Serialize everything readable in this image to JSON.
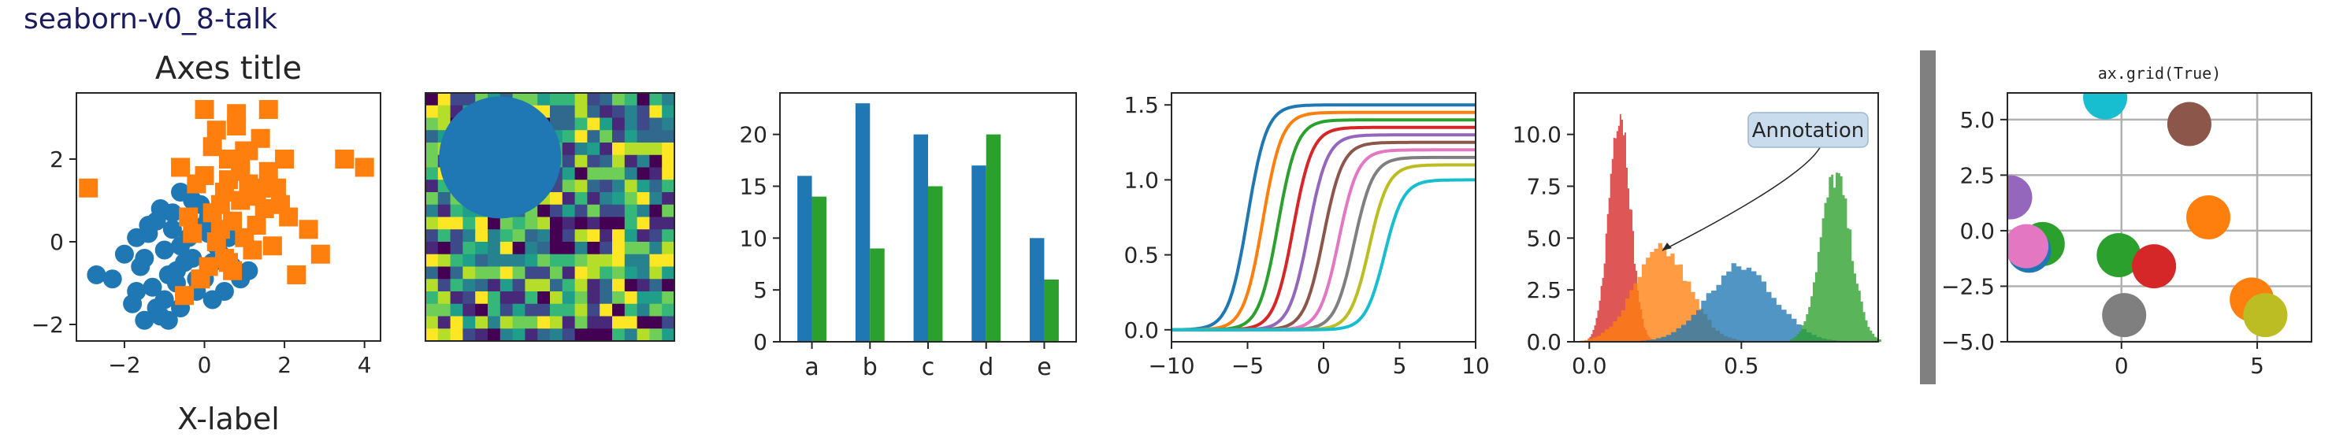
{
  "figure": {
    "suptitle": "seaborn-v0_8-talk",
    "suptitle_color": "#1a1a5e"
  },
  "palette": [
    "#1f77b4",
    "#ff7f0e",
    "#2ca02c",
    "#d62728",
    "#9467bd",
    "#8c564b",
    "#e377c2",
    "#7f7f7f",
    "#bcbd22",
    "#17becf"
  ],
  "chart_data": [
    {
      "type": "scatter",
      "title": "Axes title",
      "xlabel": "X-label",
      "ylabel": "",
      "xlim": [
        -3.2,
        4.4
      ],
      "ylim": [
        -2.4,
        3.6
      ],
      "xticks": [
        -2,
        0,
        2,
        4
      ],
      "yticks": [
        -2,
        0,
        2
      ],
      "series": [
        {
          "marker": "circle",
          "color": "#1f77b4",
          "x": [
            -2.7,
            -2.3,
            -2.0,
            -1.8,
            -1.7,
            -1.6,
            -1.5,
            -1.4,
            -1.3,
            -1.2,
            -1.1,
            -1.0,
            -0.9,
            -0.8,
            -0.7,
            -0.6,
            -0.5,
            -0.4,
            -0.3,
            -0.2,
            -0.1,
            0.0,
            0.1,
            0.2,
            0.3,
            0.5,
            0.7,
            0.9,
            1.1,
            -1.5,
            -1.2,
            -0.9,
            -0.6,
            -0.3,
            0.0,
            0.4,
            -1.7,
            -1.0,
            -0.4,
            0.2,
            -0.8,
            -0.2,
            -1.4,
            -0.6,
            0.1,
            -1.1,
            -0.5,
            0.6,
            -0.1,
            -0.7
          ],
          "y": [
            -0.8,
            -0.9,
            -0.3,
            -1.5,
            0.1,
            -0.6,
            -1.9,
            0.4,
            -1.1,
            -1.6,
            0.8,
            -0.2,
            -1.9,
            0.3,
            -0.7,
            1.2,
            -1.3,
            0.6,
            -0.4,
            -1.2,
            0.9,
            -0.9,
            0.2,
            -1.4,
            -0.1,
            -1.2,
            -0.6,
            -0.9,
            -0.7,
            -0.4,
            0.5,
            -0.8,
            -0.1,
            1.0,
            0.4,
            -0.3,
            -1.2,
            -1.4,
            0.1,
            -0.5,
            0.7,
            -0.9,
            0.2,
            -1.6,
            0.6,
            -1.8,
            -0.5,
            0.1,
            0.3,
            -1.0
          ]
        },
        {
          "marker": "square",
          "color": "#ff7f0e",
          "x": [
            -2.9,
            0.0,
            0.3,
            0.8,
            1.1,
            1.6,
            0.6,
            0.9,
            -0.2,
            0.4,
            1.3,
            0.7,
            0.2,
            1.0,
            1.5,
            2.1,
            2.6,
            0.5,
            -0.4,
            1.8,
            0.1,
            0.9,
            1.2,
            0.4,
            -0.1,
            1.7,
            0.6,
            1.4,
            2.3,
            0.8,
            -0.6,
            0.3,
            1.1,
            1.9,
            0.0,
            2.9,
            3.5,
            4.0,
            1.3,
            0.5,
            -0.3,
            0.7,
            1.6,
            2.0,
            0.9,
            1.0,
            0.2,
            1.4,
            -0.5,
            0.6
          ],
          "y": [
            1.3,
            3.2,
            2.7,
            3.1,
            2.2,
            3.2,
            2.0,
            1.7,
            1.4,
            0.9,
            1.1,
            0.5,
            2.3,
            0.1,
            0.8,
            0.6,
            0.3,
            -0.4,
            0.6,
            1.3,
            -0.6,
            1.9,
            -0.2,
            0.3,
            -0.9,
            -0.1,
            1.5,
            2.5,
            -0.8,
            2.8,
            1.8,
            0.0,
            1.4,
            0.9,
            1.6,
            -0.3,
            2.0,
            1.8,
            0.4,
            1.2,
            0.2,
            -0.7,
            1.7,
            2.0,
            1.0,
            2.2,
            0.7,
            1.3,
            -1.3,
            -0.5
          ]
        }
      ]
    },
    {
      "type": "heatmap",
      "rows": 20,
      "cols": 20,
      "value_range": [
        0,
        1
      ],
      "colormap": "viridis",
      "overlay_shape": "circle",
      "overlay_color": "#1f77b4"
    },
    {
      "type": "bar",
      "categories": [
        "a",
        "b",
        "c",
        "d",
        "e"
      ],
      "ylim": [
        0,
        24
      ],
      "yticks": [
        0,
        5,
        10,
        15,
        20
      ],
      "series": [
        {
          "color": "#1f77b4",
          "values": [
            16,
            23,
            20,
            17,
            10
          ]
        },
        {
          "color": "#2ca02c",
          "values": [
            14,
            9,
            15,
            20,
            6
          ]
        }
      ]
    },
    {
      "type": "line",
      "function": "sigmoid",
      "xlim": [
        -10,
        10
      ],
      "ylim": [
        -0.08,
        1.58
      ],
      "xticks": [
        -10,
        -5,
        0,
        5,
        10
      ],
      "yticks": [
        0.0,
        0.5,
        1.0,
        1.5
      ],
      "series": [
        {
          "color": "#1f77b4",
          "center": -5.0,
          "amplitude": 1.5
        },
        {
          "color": "#ff7f0e",
          "center": -4.0,
          "amplitude": 1.45
        },
        {
          "color": "#2ca02c",
          "center": -3.0,
          "amplitude": 1.4
        },
        {
          "color": "#d62728",
          "center": -2.0,
          "amplitude": 1.35
        },
        {
          "color": "#9467bd",
          "center": -1.0,
          "amplitude": 1.3
        },
        {
          "color": "#8c564b",
          "center": 0.0,
          "amplitude": 1.25
        },
        {
          "color": "#e377c2",
          "center": 1.0,
          "amplitude": 1.2
        },
        {
          "color": "#7f7f7f",
          "center": 2.0,
          "amplitude": 1.15
        },
        {
          "color": "#bcbd22",
          "center": 3.0,
          "amplitude": 1.1
        },
        {
          "color": "#17becf",
          "center": 4.0,
          "amplitude": 1.0
        }
      ]
    },
    {
      "type": "area",
      "histtype": "stepfilled",
      "annotation": "Annotation",
      "annotation_point": [
        0.24,
        4.4
      ],
      "xlim": [
        -0.05,
        0.95
      ],
      "ylim": [
        0,
        12
      ],
      "xticks": [
        0.0,
        0.5
      ],
      "yticks": [
        0.0,
        2.5,
        5.0,
        7.5,
        10.0
      ],
      "series": [
        {
          "color": "#d62728",
          "center": 0.1,
          "sd": 0.035,
          "peak": 11.3
        },
        {
          "color": "#ff7f0e",
          "center": 0.24,
          "sd": 0.09,
          "peak": 4.4
        },
        {
          "color": "#1f77b4",
          "center": 0.5,
          "sd": 0.11,
          "peak": 3.6
        },
        {
          "color": "#2ca02c",
          "center": 0.81,
          "sd": 0.05,
          "peak": 8.0
        }
      ]
    },
    {
      "type": "scatter",
      "title": "ax.grid(True)",
      "grid": true,
      "xlim": [
        -4.2,
        7.0
      ],
      "ylim": [
        -5.0,
        6.2
      ],
      "xticks": [
        0,
        5
      ],
      "yticks": [
        -5.0,
        -2.5,
        0.0,
        2.5,
        5.0
      ],
      "points": [
        {
          "x": -0.6,
          "y": 6.0,
          "color": "#17becf"
        },
        {
          "x": 2.5,
          "y": 4.8,
          "color": "#8c564b"
        },
        {
          "x": -4.1,
          "y": 1.5,
          "color": "#9467bd"
        },
        {
          "x": 3.2,
          "y": 0.6,
          "color": "#ff7f0e"
        },
        {
          "x": -2.9,
          "y": -0.6,
          "color": "#2ca02c"
        },
        {
          "x": -3.4,
          "y": -0.9,
          "color": "#1f77b4"
        },
        {
          "x": -3.5,
          "y": -0.7,
          "color": "#e377c2"
        },
        {
          "x": -0.1,
          "y": -1.1,
          "color": "#2ca02c"
        },
        {
          "x": 1.2,
          "y": -1.6,
          "color": "#d62728"
        },
        {
          "x": 4.8,
          "y": -3.1,
          "color": "#ff7f0e"
        },
        {
          "x": 0.1,
          "y": -3.8,
          "color": "#7f7f7f"
        },
        {
          "x": 5.3,
          "y": -3.8,
          "color": "#bcbd22"
        }
      ]
    }
  ]
}
